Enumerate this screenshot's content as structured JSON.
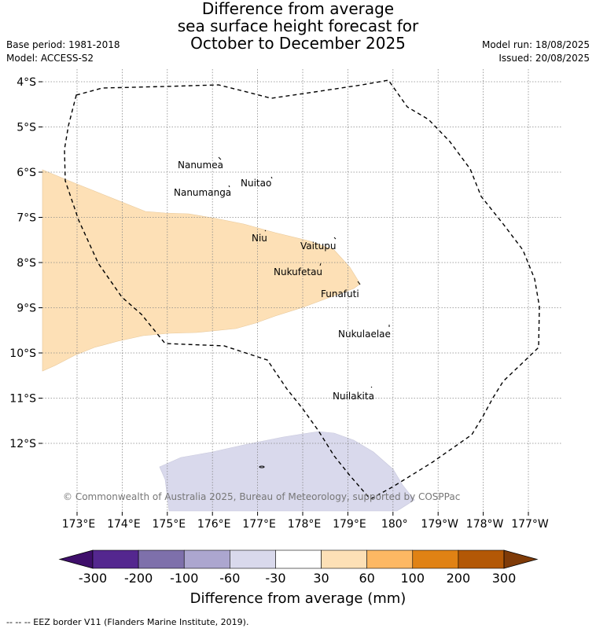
{
  "title": {
    "line1": "Difference from average",
    "line2": "sea surface height forecast for",
    "line3": "October to December 2025"
  },
  "meta": {
    "base_period": "Base period: 1981-2018",
    "model": "Model: ACCESS-S2",
    "model_run": "Model run: 18/08/2025",
    "issued": "Issued: 20/08/2025"
  },
  "map": {
    "lat_labels": [
      "4°S",
      "5°S",
      "6°S",
      "7°S",
      "8°S",
      "9°S",
      "10°S",
      "11°S",
      "12°S"
    ],
    "lon_labels": [
      "173°E",
      "174°E",
      "175°E",
      "176°E",
      "177°E",
      "178°E",
      "179°E",
      "180°",
      "179°W",
      "178°W",
      "177°W"
    ],
    "islands": [
      "Nanumea",
      "Nuitao",
      "Nanumanga",
      "Niu",
      "Vaitupu",
      "Nukufetau",
      "Funafuti",
      "Nukulaelae",
      "Nuilakita"
    ],
    "copyright": "© Commonwealth of Australia 2025, Bureau of Meteorology, supported by COSPPac",
    "colors": {
      "positive_30_60": "#fde0b6",
      "negative_30_60": "#d9d9ec",
      "eez_border": "#000000",
      "grid": "#888888"
    }
  },
  "colorbar": {
    "ticks": [
      "-300",
      "-200",
      "-100",
      "-60",
      "-30",
      "30",
      "60",
      "100",
      "200",
      "300"
    ],
    "colors": [
      "#3f0f6b",
      "#54278f",
      "#7e70ab",
      "#aca6cf",
      "#d9d9ec",
      "#ffffff",
      "#fde0b6",
      "#fdb863",
      "#e08214",
      "#b35806",
      "#7f3b08"
    ],
    "title": "Difference from average (mm)"
  },
  "footer": "--  --  -- EEZ border V11 (Flanders Marine Institute, 2019)."
}
